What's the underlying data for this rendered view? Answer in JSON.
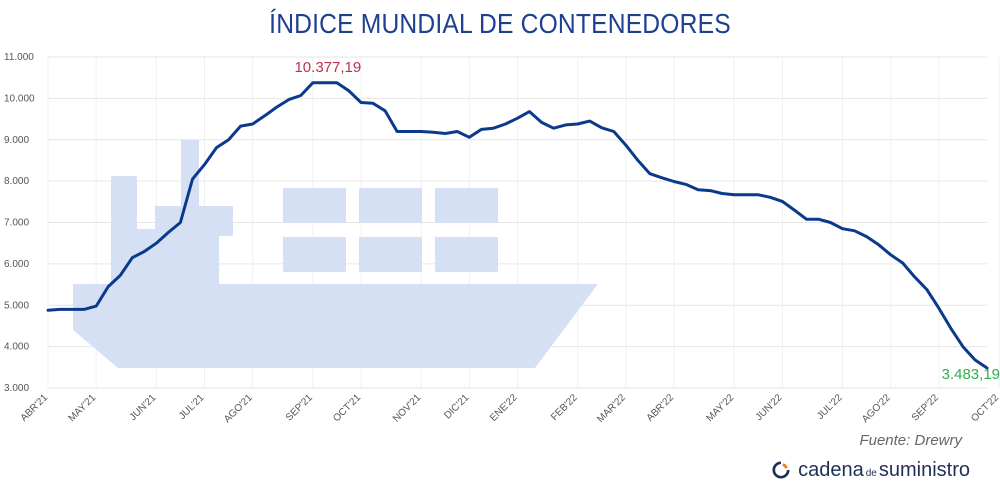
{
  "title": "ÍNDICE MUNDIAL DE CONTENEDORES",
  "source": "Fuente: Drewry",
  "brand": {
    "part1": "cadena",
    "part2": "de",
    "part3": "suministro"
  },
  "colors": {
    "line": "#0b3a8c",
    "max_label": "#c0304d",
    "min_label": "#2bb04a",
    "ship": "#d6e0f5",
    "title": "#1f3f8f"
  },
  "chart_data": {
    "type": "line",
    "title": "ÍNDICE MUNDIAL DE CONTENEDORES",
    "ylim": [
      3000,
      11000
    ],
    "yticks": [
      3000,
      4000,
      5000,
      6000,
      7000,
      8000,
      9000,
      10000,
      11000
    ],
    "ytick_labels": [
      "3.000",
      "4.000",
      "5.000",
      "6.000",
      "7.000",
      "8.000",
      "9.000",
      "10.000",
      "11.000"
    ],
    "x_ticks": [
      {
        "label": "ABR'21",
        "x": 0
      },
      {
        "label": "MAY'21",
        "x": 4
      },
      {
        "label": "JUN'21",
        "x": 9
      },
      {
        "label": "JUL'21",
        "x": 13
      },
      {
        "label": "AGO'21",
        "x": 17
      },
      {
        "label": "SEP'21",
        "x": 22
      },
      {
        "label": "OCT'21",
        "x": 26
      },
      {
        "label": "NOV'21",
        "x": 31
      },
      {
        "label": "DIC'21",
        "x": 35
      },
      {
        "label": "ENE'22",
        "x": 39
      },
      {
        "label": "FEB'22",
        "x": 44
      },
      {
        "label": "MAR'22",
        "x": 48
      },
      {
        "label": "ABR'22",
        "x": 52
      },
      {
        "label": "MAY'22",
        "x": 57
      },
      {
        "label": "JUN'22",
        "x": 61
      },
      {
        "label": "JUL'22",
        "x": 66
      },
      {
        "label": "AGO'22",
        "x": 70
      },
      {
        "label": "SEP'22",
        "x": 74
      },
      {
        "label": "OCT'22",
        "x": 79
      }
    ],
    "series": [
      {
        "values": [
          4880,
          4900,
          4900,
          4900,
          4980,
          5450,
          5720,
          6150,
          6300,
          6500,
          6760,
          7000,
          8050,
          8400,
          8810,
          9000,
          9330,
          9380,
          9580,
          9790,
          9970,
          10070,
          10377.19,
          10377,
          10377,
          10180,
          9900,
          9880,
          9700,
          9200,
          9200,
          9200,
          9180,
          9150,
          9200,
          9060,
          9250,
          9280,
          9380,
          9520,
          9680,
          9420,
          9280,
          9360,
          9380,
          9450,
          9290,
          9200,
          8870,
          8500,
          8180,
          8080,
          7990,
          7920,
          7790,
          7770,
          7700,
          7670,
          7670,
          7670,
          7610,
          7510,
          7300,
          7080,
          7080,
          7000,
          6850,
          6800,
          6660,
          6460,
          6220,
          6020,
          5680,
          5380,
          4930,
          4440,
          4000,
          3680,
          3483.19
        ]
      }
    ],
    "annotations": [
      {
        "label": "10.377,19",
        "index": 22,
        "value": 10377.19
      },
      {
        "label": "3.483,19",
        "index": 78,
        "value": 3483.19
      }
    ],
    "grid": true
  }
}
